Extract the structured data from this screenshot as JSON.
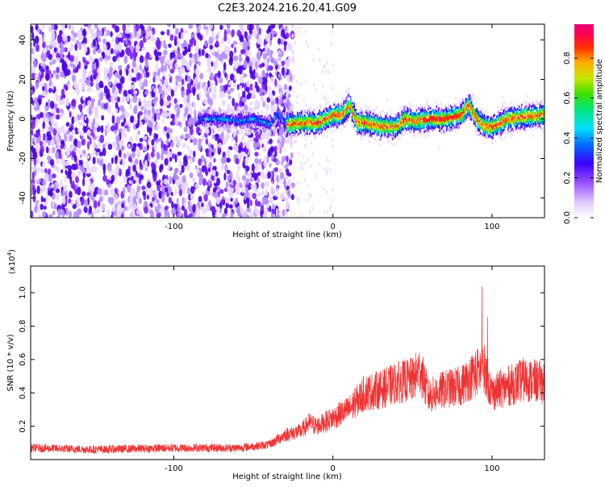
{
  "title": "C2E3.2024.216.20.41.G09",
  "chart_data": [
    {
      "type": "heatmap",
      "xlabel": "Height of straight line (km)",
      "ylabel": "Frequency (Hz)",
      "xlim": [
        -190,
        133
      ],
      "ylim": [
        -50,
        48
      ],
      "xticks": [
        -100,
        0,
        100
      ],
      "yticks": [
        -40,
        -20,
        0,
        20,
        40
      ],
      "colorbar": {
        "label": "Normalized spectral amplitude",
        "range": [
          0,
          0.97
        ],
        "ticks": [
          0.0,
          0.2,
          0.4,
          0.6,
          0.8
        ],
        "colors": [
          "#ffffff",
          "#e8d6ff",
          "#b48cff",
          "#7a1fff",
          "#4a00e6",
          "#0040ff",
          "#00c8ff",
          "#00e68c",
          "#40e000",
          "#c8e600",
          "#ffb000",
          "#ff3000",
          "#ff0060",
          "#e6007a"
        ]
      },
      "noise_region_x": [
        -190,
        -35
      ],
      "ridge": {
        "x": [
          -80,
          -70,
          -60,
          -50,
          -40,
          -35,
          -30,
          -20,
          -10,
          0,
          5,
          10,
          15,
          20,
          30,
          40,
          45,
          50,
          60,
          70,
          80,
          85,
          90,
          95,
          100,
          110,
          120,
          133
        ],
        "y": [
          0,
          0,
          -1,
          0,
          -3,
          3,
          -3,
          -2,
          -2,
          2,
          2,
          7,
          -2,
          -2,
          -4,
          -4,
          0,
          -1,
          0,
          0,
          2,
          7,
          0,
          -4,
          -4,
          0,
          1,
          2
        ]
      }
    },
    {
      "type": "line",
      "xlabel": "Height of straight line (km)",
      "ylabel": "SNR (10 * v/v)",
      "y_multiplier_label": "(x10",
      "y_multiplier_exp": "4",
      "xlim": [
        -190,
        133
      ],
      "ylim": [
        0,
        1.16
      ],
      "xticks": [
        -100,
        0,
        100
      ],
      "yticks": [
        0.2,
        0.4,
        0.6,
        0.8,
        1.0
      ],
      "color": "#ee3333",
      "series": [
        {
          "x": [
            -190,
            -150,
            -100,
            -60,
            -40,
            -30,
            -20,
            -15,
            -10,
            0,
            10,
            20,
            30,
            40,
            50,
            55,
            60,
            70,
            80,
            85,
            90,
            95,
            100,
            110,
            120,
            133
          ],
          "y": [
            0.07,
            0.06,
            0.07,
            0.07,
            0.09,
            0.15,
            0.17,
            0.22,
            0.2,
            0.25,
            0.3,
            0.4,
            0.42,
            0.46,
            0.48,
            0.54,
            0.38,
            0.42,
            0.44,
            0.48,
            0.52,
            0.55,
            0.4,
            0.44,
            0.48,
            0.46
          ]
        }
      ]
    }
  ]
}
